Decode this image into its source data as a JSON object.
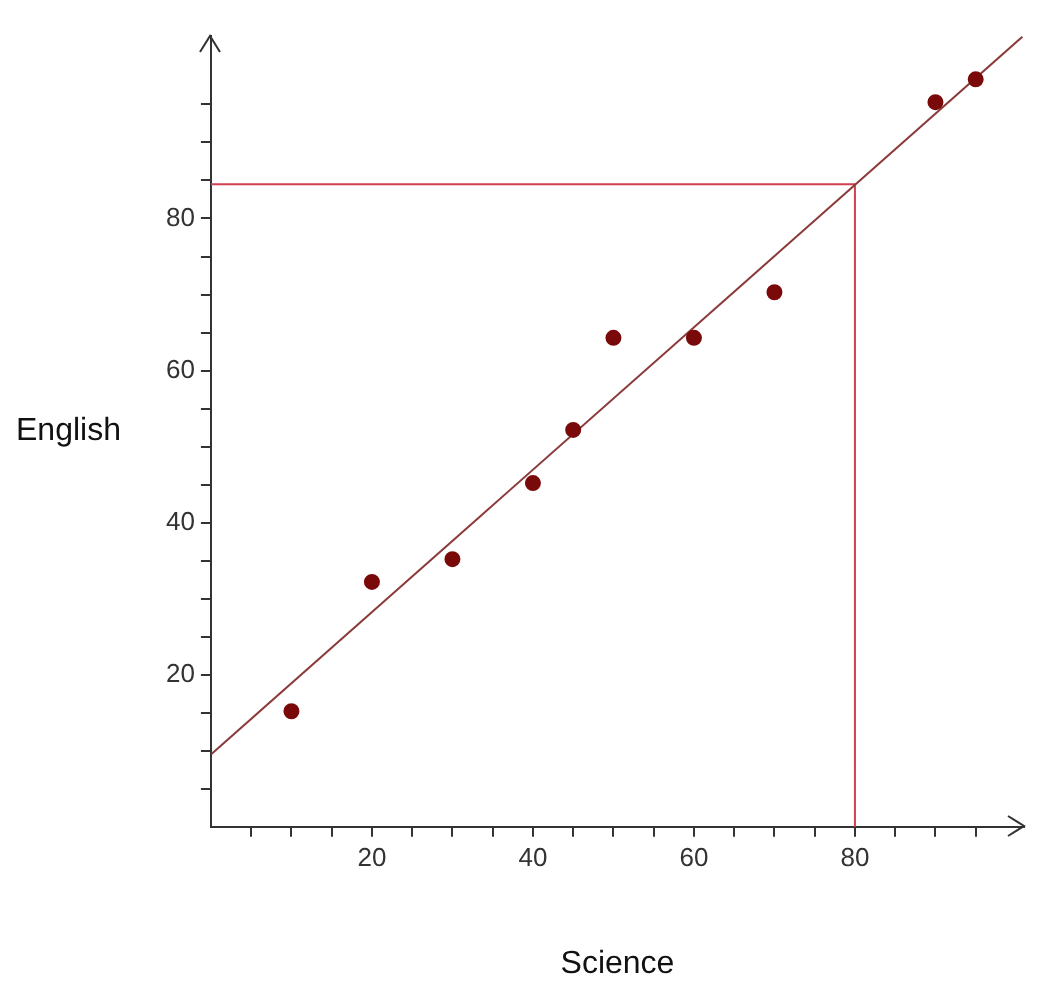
{
  "chart_data": {
    "type": "scatter",
    "xlabel": "Science",
    "ylabel": "English",
    "xlim": [
      0,
      101
    ],
    "ylim": [
      0,
      104
    ],
    "xticks": [
      {
        "value": 5,
        "label": null
      },
      {
        "value": 10,
        "label": null
      },
      {
        "value": 15,
        "label": null
      },
      20,
      {
        "value": 25,
        "label": null
      },
      {
        "value": 30,
        "label": null
      },
      {
        "value": 35,
        "label": null
      },
      40,
      {
        "value": 45,
        "label": null
      },
      {
        "value": 50,
        "label": null
      },
      {
        "value": 55,
        "label": null
      },
      60,
      {
        "value": 65,
        "label": null
      },
      {
        "value": 70,
        "label": null
      },
      {
        "value": 75,
        "label": null
      },
      80,
      {
        "value": 85,
        "label": null
      },
      {
        "value": 90,
        "label": null
      },
      {
        "value": 95,
        "label": null
      }
    ],
    "yticks": [
      {
        "value": 5,
        "label": null
      },
      {
        "value": 10,
        "label": null
      },
      {
        "value": 15,
        "label": null
      },
      20,
      {
        "value": 25,
        "label": null
      },
      {
        "value": 30,
        "label": null
      },
      {
        "value": 35,
        "label": null
      },
      40,
      {
        "value": 45,
        "label": null
      },
      {
        "value": 50,
        "label": null
      },
      {
        "value": 55,
        "label": null
      },
      60,
      {
        "value": 65,
        "label": null
      },
      {
        "value": 70,
        "label": null
      },
      {
        "value": 75,
        "label": null
      },
      80,
      {
        "value": 85,
        "label": null
      },
      {
        "value": 90,
        "label": null
      },
      {
        "value": 95,
        "label": null
      }
    ],
    "grid": false,
    "legend": false,
    "marker": "circle",
    "series": [
      {
        "type": "scatter",
        "color": "#7a0a0a",
        "x": [
          10,
          20,
          30,
          40,
          45,
          50,
          60,
          70,
          90,
          95
        ],
        "values": [
          15.2,
          32.2,
          35.2,
          45.2,
          52.2,
          64.3,
          64.3,
          70.3,
          95.3,
          98.3
        ]
      },
      {
        "type": "line",
        "color": "#8b3a3a",
        "marker": "none",
        "x": [
          0,
          100.8
        ],
        "values": [
          9.5,
          103.9
        ]
      },
      {
        "type": "line",
        "color": "#d04050",
        "marker": "none",
        "x": [
          0,
          80,
          80
        ],
        "values": [
          84.5,
          84.5,
          0
        ]
      }
    ]
  }
}
